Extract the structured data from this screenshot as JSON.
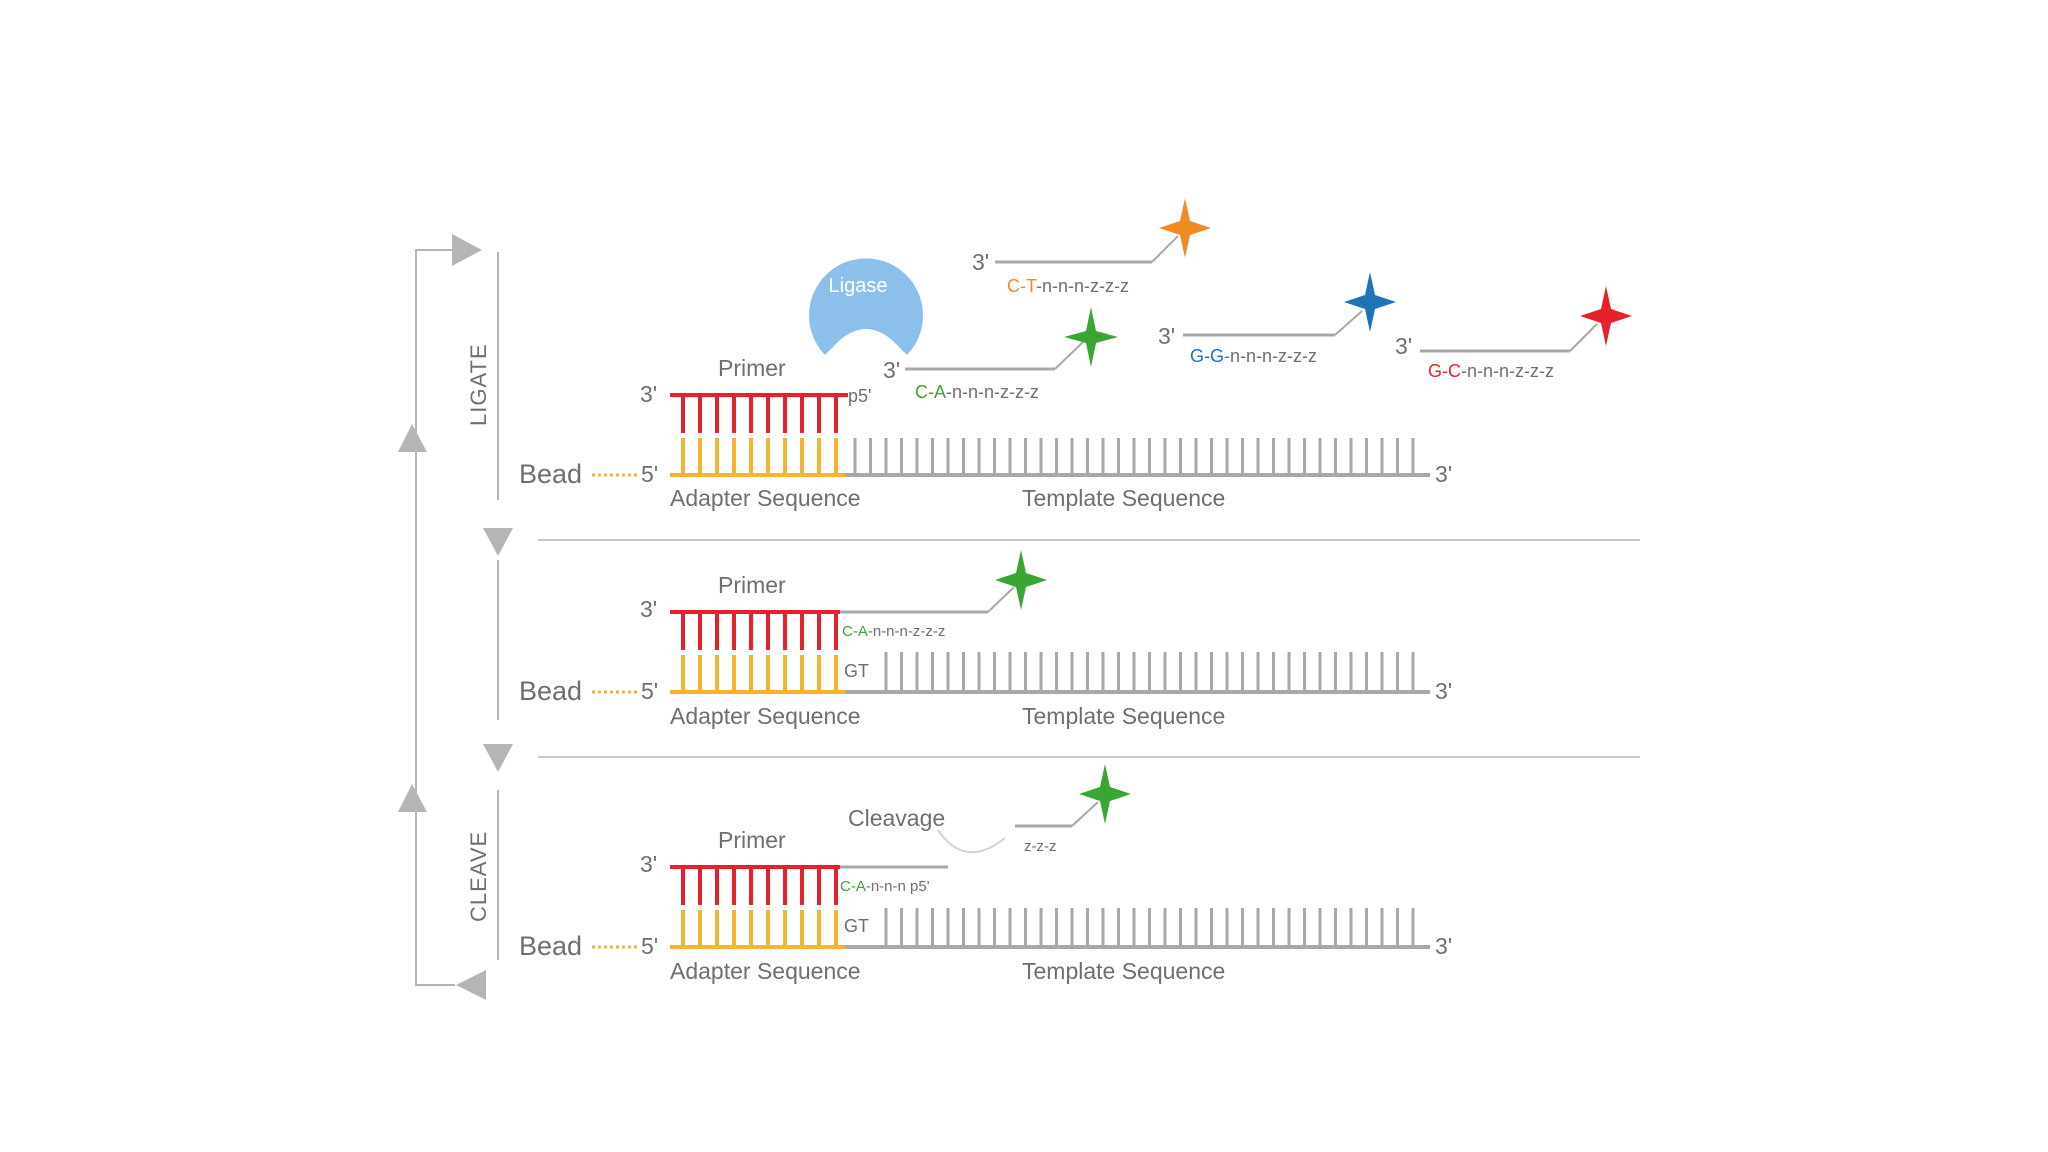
{
  "labels": {
    "ligate": "LIGATE",
    "cleave": "CLEAVE",
    "ligase": "Ligase",
    "cleavage": "Cleavage",
    "primer": "Primer",
    "bead": "Bead",
    "adapter": "Adapter Sequence",
    "template": "Template  Sequence",
    "three_prime": "3'",
    "five_prime": "5'",
    "p5": "p5'",
    "gt": "GT"
  },
  "probes": {
    "ct": {
      "prefix": "C-T",
      "suffix": "-n-n-n-z-z-z",
      "color": "#f08a24"
    },
    "ca": {
      "prefix": "C-A",
      "suffix": "-n-n-n-z-z-z",
      "color": "#3aa535"
    },
    "gg": {
      "prefix": "G-G",
      "suffix": "-n-n-n-z-z-z",
      "color": "#1f73b7"
    },
    "gc": {
      "prefix": "G-C",
      "suffix": "-n-n-n-z-z-z",
      "color": "#e5212b"
    }
  },
  "panel2_probe": {
    "prefix": "C-A",
    "suffix": "-n-n-n-z-z-z"
  },
  "panel3_probe": {
    "prefix": "C-A",
    "suffix": "-n-n-n p5'",
    "cleaved": "z-z-z"
  },
  "colors": {
    "primer": "#e5212b",
    "adapter": "#f6b233",
    "template": "#a8a8a8",
    "ligase": "#8cc0ea",
    "arrow": "#b5b5b5"
  }
}
